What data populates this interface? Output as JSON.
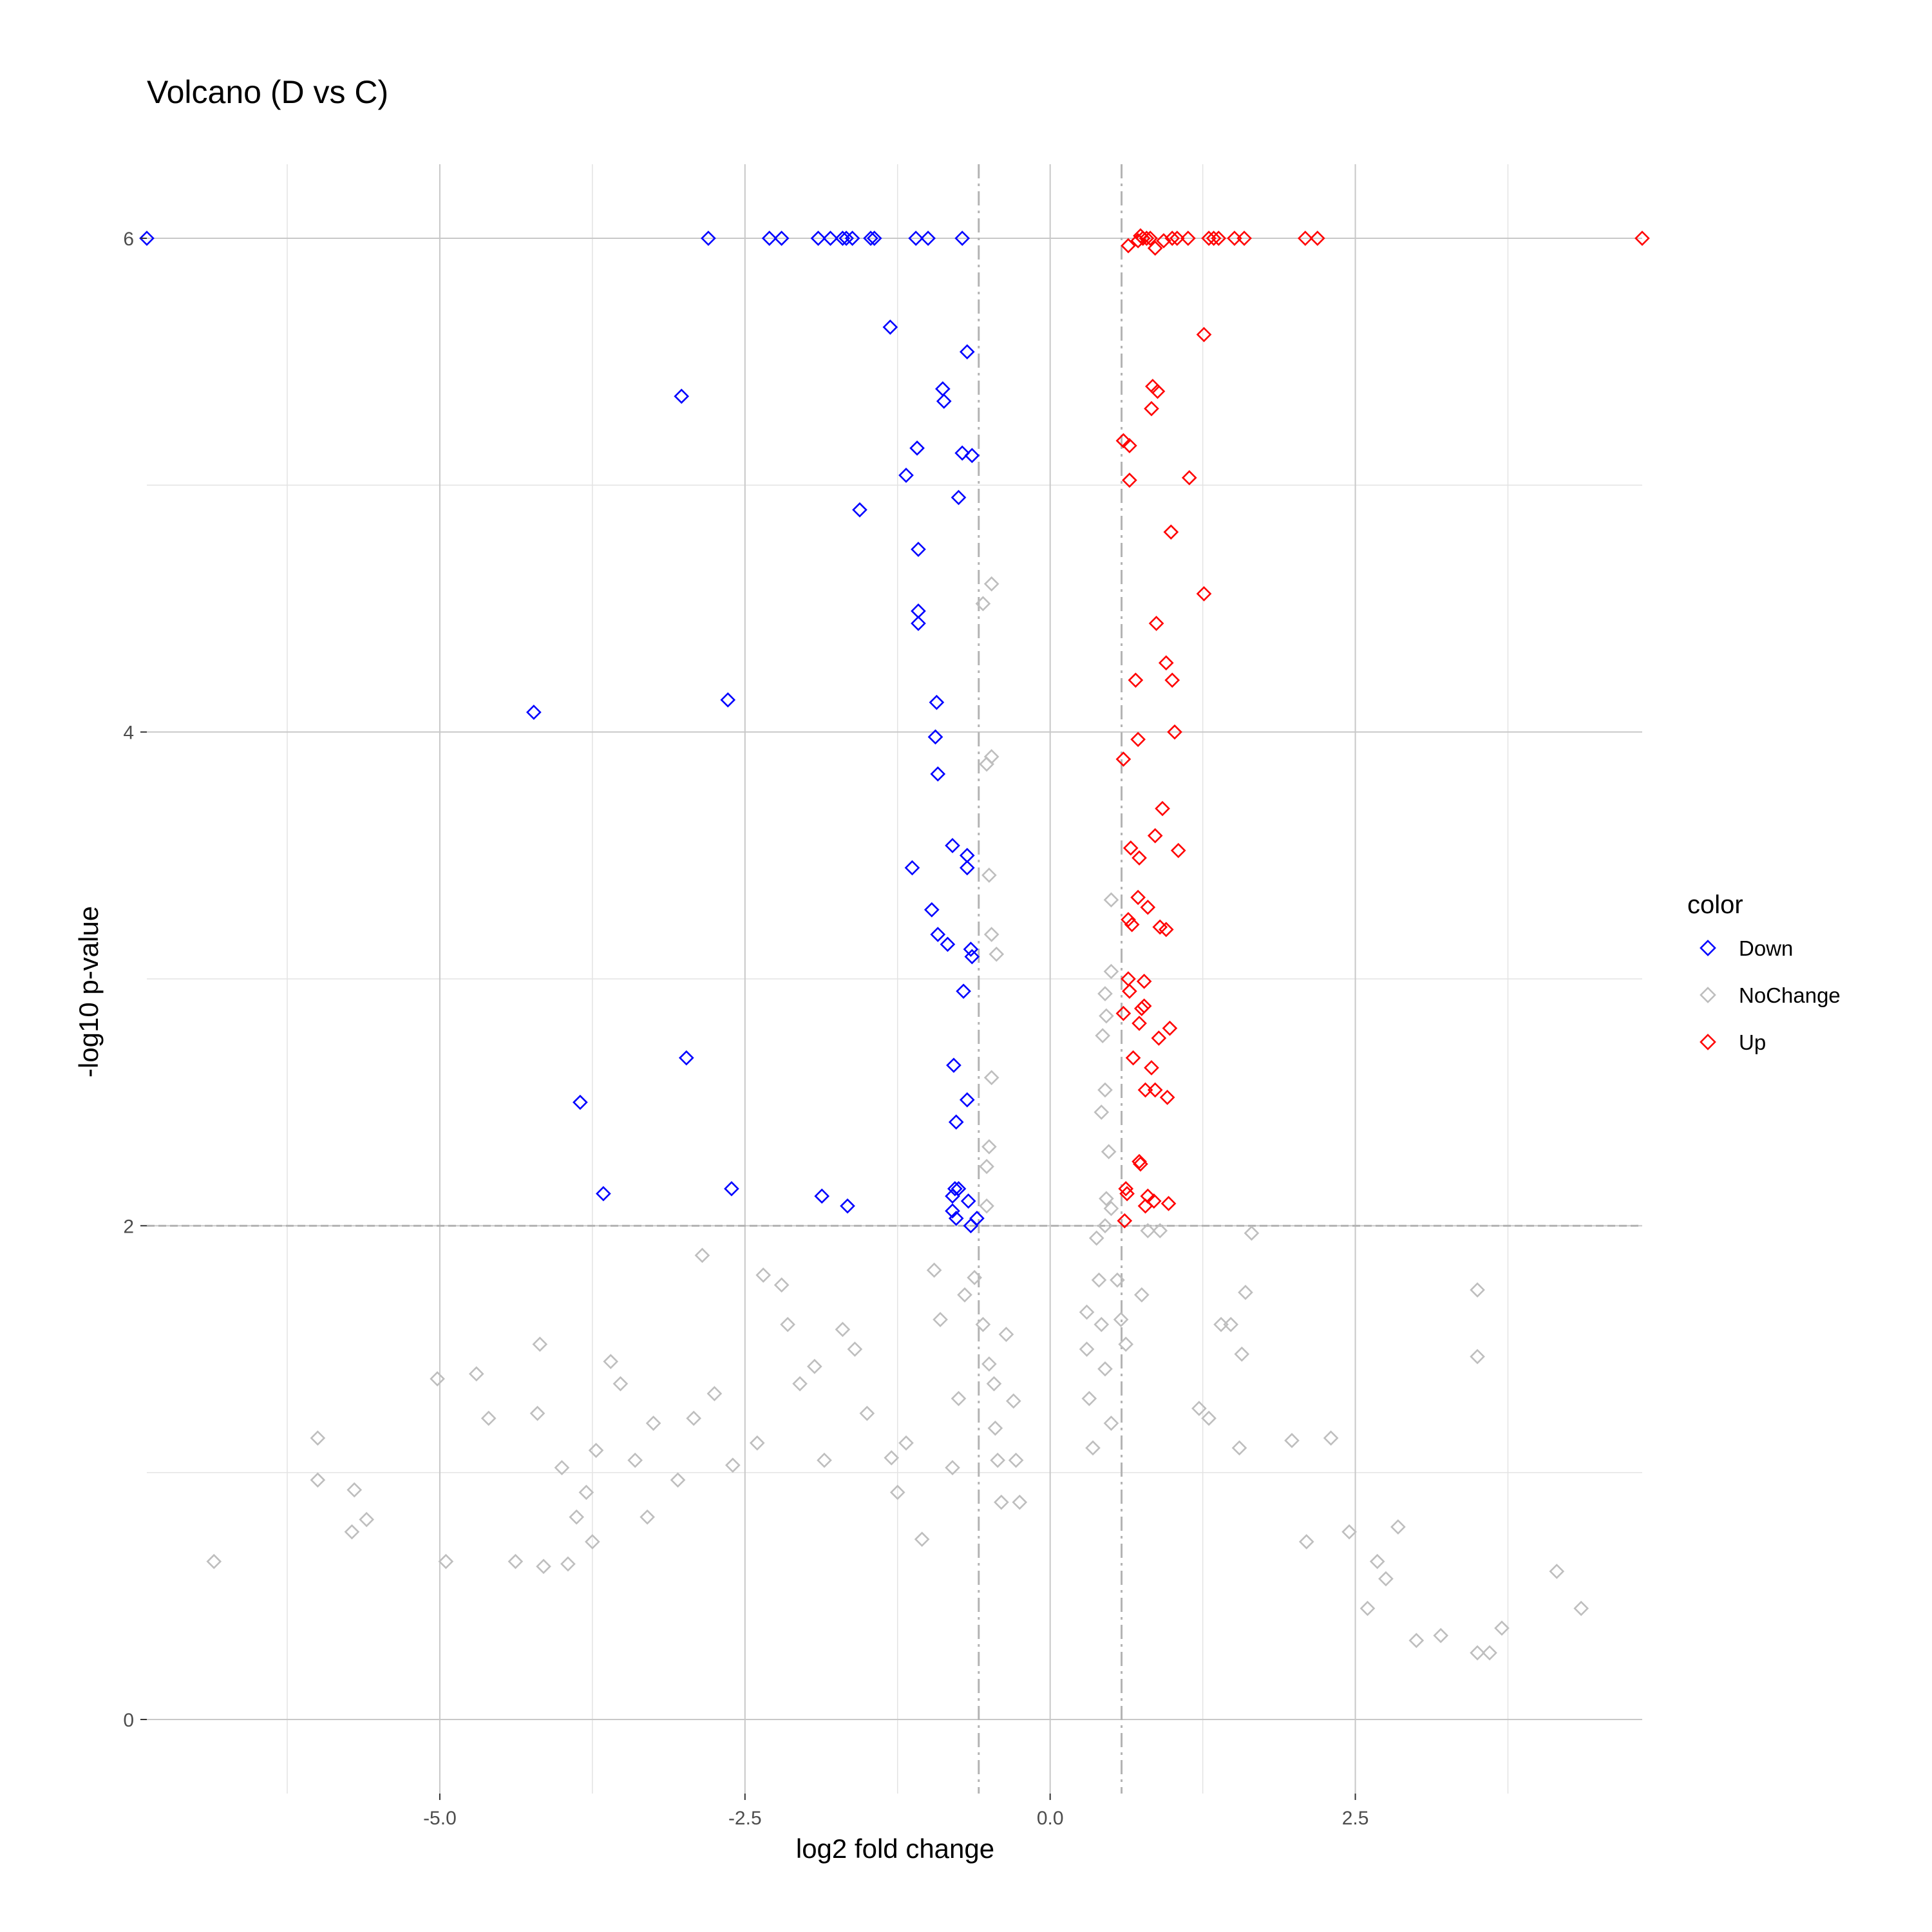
{
  "title": "Volcano (D vs C)",
  "chart_data": {
    "type": "scatter",
    "title": "Volcano (D vs C)",
    "xlabel": "log2 fold change",
    "ylabel": "-log10 p-value",
    "xlim": [
      -7.4,
      4.85
    ],
    "ylim": [
      -0.3,
      6.3
    ],
    "x_ticks": [
      -5.0,
      -2.5,
      0.0,
      2.5
    ],
    "x_tick_labels": [
      "-5.0",
      "-2.5",
      "0.0",
      "2.5"
    ],
    "y_ticks": [
      0,
      2,
      4,
      6
    ],
    "y_tick_labels": [
      "0",
      "2",
      "4",
      "6"
    ],
    "grid": true,
    "marker": "diamond-open",
    "thresholds": {
      "log2fc": [
        -0.585,
        0.585
      ],
      "neg_log10_p": 2
    },
    "legend": {
      "title": "color",
      "placement": "right",
      "entries": [
        "Down",
        "NoChange",
        "Up"
      ]
    },
    "colors": {
      "Down": "#0000ff",
      "NoChange": "#bebebe",
      "Up": "#ff0000"
    },
    "series": [
      {
        "name": "Down",
        "points": [
          [
            -7.4,
            6
          ],
          [
            -2.8,
            6
          ],
          [
            -2.3,
            6
          ],
          [
            -2.2,
            6
          ],
          [
            -1.9,
            6
          ],
          [
            -1.8,
            6
          ],
          [
            -1.7,
            6
          ],
          [
            -1.67,
            6
          ],
          [
            -1.62,
            6
          ],
          [
            -1.47,
            6
          ],
          [
            -1.44,
            6
          ],
          [
            -1.1,
            6
          ],
          [
            -1.0,
            6
          ],
          [
            -0.72,
            6
          ],
          [
            -1.31,
            5.64
          ],
          [
            -0.68,
            5.54
          ],
          [
            -3.02,
            5.36
          ],
          [
            -0.88,
            5.39
          ],
          [
            -0.87,
            5.34
          ],
          [
            -1.09,
            5.15
          ],
          [
            -0.72,
            5.13
          ],
          [
            -0.64,
            5.12
          ],
          [
            -1.18,
            5.04
          ],
          [
            -0.75,
            4.95
          ],
          [
            -1.56,
            4.9
          ],
          [
            -1.08,
            4.74
          ],
          [
            -1.08,
            4.49
          ],
          [
            -1.08,
            4.44
          ],
          [
            -4.23,
            4.08
          ],
          [
            -2.64,
            4.13
          ],
          [
            -0.93,
            4.12
          ],
          [
            -0.94,
            3.98
          ],
          [
            -0.92,
            3.83
          ],
          [
            -0.8,
            3.54
          ],
          [
            -1.13,
            3.45
          ],
          [
            -0.68,
            3.5
          ],
          [
            -0.68,
            3.45
          ],
          [
            -0.97,
            3.28
          ],
          [
            -0.92,
            3.18
          ],
          [
            -0.84,
            3.14
          ],
          [
            -0.65,
            3.12
          ],
          [
            -0.64,
            3.09
          ],
          [
            -0.71,
            2.95
          ],
          [
            -2.98,
            2.68
          ],
          [
            -3.85,
            2.5
          ],
          [
            -0.79,
            2.65
          ],
          [
            -0.68,
            2.51
          ],
          [
            -0.77,
            2.42
          ],
          [
            -3.66,
            2.13
          ],
          [
            -2.61,
            2.15
          ],
          [
            -1.87,
            2.12
          ],
          [
            -1.66,
            2.08
          ],
          [
            -0.78,
            2.15
          ],
          [
            -0.75,
            2.15
          ],
          [
            -0.8,
            2.12
          ],
          [
            -0.67,
            2.1
          ],
          [
            -0.8,
            2.06
          ],
          [
            -0.77,
            2.03
          ],
          [
            -0.6,
            2.03
          ],
          [
            -0.65,
            2.0
          ]
        ]
      },
      {
        "name": "Up",
        "points": [
          [
            4.85,
            6
          ],
          [
            0.64,
            5.97
          ],
          [
            0.72,
            5.99
          ],
          [
            0.74,
            6.01
          ],
          [
            0.76,
            6.0
          ],
          [
            0.79,
            6.0
          ],
          [
            0.82,
            6.0
          ],
          [
            0.86,
            5.96
          ],
          [
            0.93,
            5.99
          ],
          [
            1.0,
            6.0
          ],
          [
            1.04,
            6.0
          ],
          [
            1.13,
            6.0
          ],
          [
            1.3,
            6.0
          ],
          [
            1.34,
            6.0
          ],
          [
            1.38,
            6.0
          ],
          [
            1.51,
            6.0
          ],
          [
            1.59,
            6.0
          ],
          [
            2.09,
            6.0
          ],
          [
            2.19,
            6.0
          ],
          [
            1.26,
            5.61
          ],
          [
            0.84,
            5.4
          ],
          [
            0.88,
            5.38
          ],
          [
            0.83,
            5.31
          ],
          [
            0.6,
            5.18
          ],
          [
            0.65,
            5.16
          ],
          [
            1.14,
            5.03
          ],
          [
            0.65,
            5.02
          ],
          [
            0.99,
            4.81
          ],
          [
            1.26,
            4.56
          ],
          [
            0.87,
            4.44
          ],
          [
            0.95,
            4.28
          ],
          [
            0.7,
            4.21
          ],
          [
            1.0,
            4.21
          ],
          [
            0.72,
            3.97
          ],
          [
            1.02,
            4.0
          ],
          [
            0.6,
            3.89
          ],
          [
            0.92,
            3.69
          ],
          [
            0.86,
            3.58
          ],
          [
            0.66,
            3.53
          ],
          [
            0.73,
            3.49
          ],
          [
            1.05,
            3.52
          ],
          [
            0.72,
            3.33
          ],
          [
            0.8,
            3.29
          ],
          [
            0.64,
            3.24
          ],
          [
            0.67,
            3.22
          ],
          [
            0.9,
            3.21
          ],
          [
            0.95,
            3.2
          ],
          [
            0.64,
            3.0
          ],
          [
            0.77,
            2.99
          ],
          [
            0.65,
            2.95
          ],
          [
            0.75,
            2.88
          ],
          [
            0.6,
            2.86
          ],
          [
            0.77,
            2.89
          ],
          [
            0.73,
            2.82
          ],
          [
            0.98,
            2.8
          ],
          [
            0.89,
            2.76
          ],
          [
            0.68,
            2.68
          ],
          [
            0.83,
            2.64
          ],
          [
            0.86,
            2.55
          ],
          [
            0.78,
            2.55
          ],
          [
            0.96,
            2.52
          ],
          [
            0.73,
            2.26
          ],
          [
            0.74,
            2.25
          ],
          [
            0.62,
            2.15
          ],
          [
            0.63,
            2.13
          ],
          [
            0.8,
            2.12
          ],
          [
            0.85,
            2.1
          ],
          [
            0.78,
            2.08
          ],
          [
            0.97,
            2.09
          ],
          [
            0.61,
            2.02
          ]
        ]
      },
      {
        "name": "NoChange",
        "points": [
          [
            -6.85,
            0.64
          ],
          [
            -6.0,
            1.14
          ],
          [
            -6.0,
            0.97
          ],
          [
            -5.7,
            0.93
          ],
          [
            -5.72,
            0.76
          ],
          [
            -5.6,
            0.81
          ],
          [
            -5.02,
            1.38
          ],
          [
            -4.95,
            0.64
          ],
          [
            -4.7,
            1.4
          ],
          [
            -4.6,
            1.22
          ],
          [
            -4.38,
            0.64
          ],
          [
            -4.2,
            1.24
          ],
          [
            -4.18,
            1.52
          ],
          [
            -4.15,
            0.62
          ],
          [
            -4.0,
            1.02
          ],
          [
            -3.95,
            0.63
          ],
          [
            -3.88,
            0.82
          ],
          [
            -3.8,
            0.92
          ],
          [
            -3.75,
            0.72
          ],
          [
            -3.72,
            1.09
          ],
          [
            -3.6,
            1.45
          ],
          [
            -3.52,
            1.36
          ],
          [
            -3.4,
            1.05
          ],
          [
            -3.3,
            0.82
          ],
          [
            -3.25,
            1.2
          ],
          [
            -3.05,
            0.97
          ],
          [
            -2.92,
            1.22
          ],
          [
            -2.85,
            1.88
          ],
          [
            -2.75,
            1.32
          ],
          [
            -2.6,
            1.03
          ],
          [
            -2.4,
            1.12
          ],
          [
            -2.35,
            1.8
          ],
          [
            -2.2,
            1.76
          ],
          [
            -2.15,
            1.6
          ],
          [
            -2.05,
            1.36
          ],
          [
            -1.93,
            1.43
          ],
          [
            -1.85,
            1.05
          ],
          [
            -1.7,
            1.58
          ],
          [
            -1.6,
            1.5
          ],
          [
            -1.5,
            1.24
          ],
          [
            -1.3,
            1.06
          ],
          [
            -1.25,
            0.92
          ],
          [
            -1.18,
            1.12
          ],
          [
            -1.05,
            0.73
          ],
          [
            -0.95,
            1.82
          ],
          [
            -0.9,
            1.62
          ],
          [
            -0.8,
            1.02
          ],
          [
            -0.75,
            1.3
          ],
          [
            -0.7,
            1.72
          ],
          [
            -0.62,
            1.79
          ],
          [
            -0.55,
            1.6
          ],
          [
            -0.5,
            1.44
          ],
          [
            -0.46,
            1.36
          ],
          [
            -0.45,
            1.18
          ],
          [
            -0.43,
            1.05
          ],
          [
            -0.4,
            0.88
          ],
          [
            -0.52,
            2.08
          ],
          [
            -0.52,
            2.24
          ],
          [
            -0.5,
            2.32
          ],
          [
            -0.48,
            2.6
          ],
          [
            -0.48,
            3.18
          ],
          [
            -0.5,
            3.42
          ],
          [
            -0.52,
            3.87
          ],
          [
            -0.48,
            3.9
          ],
          [
            -0.55,
            4.52
          ],
          [
            -0.48,
            4.6
          ],
          [
            -0.44,
            3.1
          ],
          [
            -0.36,
            1.56
          ],
          [
            -0.3,
            1.29
          ],
          [
            -0.28,
            1.05
          ],
          [
            -0.25,
            0.88
          ],
          [
            0.3,
            1.65
          ],
          [
            0.3,
            1.5
          ],
          [
            0.32,
            1.3
          ],
          [
            0.35,
            1.1
          ],
          [
            0.38,
            1.95
          ],
          [
            0.4,
            1.78
          ],
          [
            0.42,
            1.6
          ],
          [
            0.45,
            1.42
          ],
          [
            0.5,
            1.2
          ],
          [
            0.55,
            1.78
          ],
          [
            0.58,
            1.62
          ],
          [
            0.62,
            1.52
          ],
          [
            0.45,
            2.0
          ],
          [
            0.48,
            2.3
          ],
          [
            0.45,
            2.55
          ],
          [
            0.42,
            2.46
          ],
          [
            0.46,
            2.11
          ],
          [
            0.5,
            2.07
          ],
          [
            0.43,
            2.77
          ],
          [
            0.46,
            2.85
          ],
          [
            0.45,
            2.94
          ],
          [
            0.5,
            3.03
          ],
          [
            0.5,
            3.32
          ],
          [
            0.75,
            1.72
          ],
          [
            0.8,
            1.98
          ],
          [
            0.9,
            1.98
          ],
          [
            1.22,
            1.26
          ],
          [
            1.3,
            1.22
          ],
          [
            1.4,
            1.6
          ],
          [
            1.48,
            1.6
          ],
          [
            1.55,
            1.1
          ],
          [
            1.57,
            1.48
          ],
          [
            1.6,
            1.73
          ],
          [
            1.65,
            1.97
          ],
          [
            1.98,
            1.13
          ],
          [
            2.1,
            0.72
          ],
          [
            2.3,
            1.14
          ],
          [
            2.45,
            0.76
          ],
          [
            2.6,
            0.45
          ],
          [
            2.68,
            0.64
          ],
          [
            2.75,
            0.57
          ],
          [
            2.85,
            0.78
          ],
          [
            3.0,
            0.32
          ],
          [
            3.2,
            0.34
          ],
          [
            3.5,
            1.47
          ],
          [
            3.5,
            1.74
          ],
          [
            3.5,
            0.27
          ],
          [
            3.6,
            0.27
          ],
          [
            3.7,
            0.37
          ],
          [
            4.15,
            0.6
          ],
          [
            4.35,
            0.45
          ]
        ]
      }
    ]
  }
}
